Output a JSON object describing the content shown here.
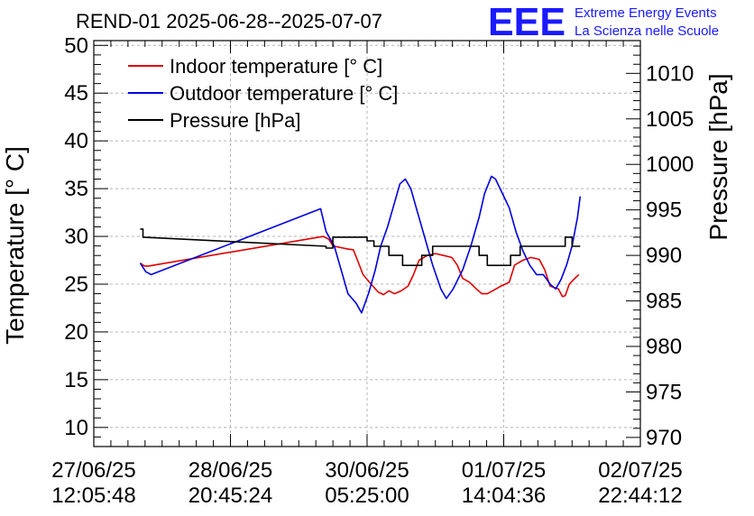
{
  "chart_data": {
    "type": "line",
    "title": "REND-01 2025-06-28--2025-07-07",
    "left_axis": {
      "label": "Temperature [° C]",
      "ylim": [
        8,
        50.5
      ],
      "ticks": [
        10,
        15,
        20,
        25,
        30,
        35,
        40,
        45,
        50
      ]
    },
    "right_axis": {
      "label": "Pressure [hPa]",
      "ylim": [
        969,
        1013.6
      ],
      "ticks": [
        970,
        975,
        980,
        985,
        990,
        995,
        1000,
        1005,
        1010
      ]
    },
    "x_axis": {
      "xlim": [
        0,
        4
      ],
      "ticks": [
        {
          "x": 0,
          "line1": "27/06/25",
          "line2": "12:05:48"
        },
        {
          "x": 1,
          "line1": "28/06/25",
          "line2": "20:45:24"
        },
        {
          "x": 2,
          "line1": "30/06/25",
          "line2": "05:25:00"
        },
        {
          "x": 3,
          "line1": "01/07/25",
          "line2": "14:04:36"
        },
        {
          "x": 4,
          "line1": "02/07/25",
          "line2": "22:44:12"
        }
      ]
    },
    "grid": true,
    "legend_position": "top-left",
    "series": [
      {
        "name": "Indoor temperature [° C]",
        "color": "#e00000",
        "axis": "left",
        "points": [
          [
            0.34,
            27.2
          ],
          [
            0.37,
            26.9
          ],
          [
            0.4,
            26.9
          ],
          [
            1.68,
            30.0
          ],
          [
            1.72,
            29.7
          ],
          [
            1.75,
            29.0
          ],
          [
            1.85,
            28.7
          ],
          [
            1.9,
            28.6
          ],
          [
            1.93,
            27.5
          ],
          [
            1.97,
            26.0
          ],
          [
            2.03,
            25.0
          ],
          [
            2.08,
            24.2
          ],
          [
            2.12,
            23.9
          ],
          [
            2.16,
            24.3
          ],
          [
            2.2,
            24.0
          ],
          [
            2.25,
            24.3
          ],
          [
            2.3,
            24.8
          ],
          [
            2.34,
            26.0
          ],
          [
            2.38,
            27.5
          ],
          [
            2.44,
            28.0
          ],
          [
            2.5,
            28.2
          ],
          [
            2.56,
            28.0
          ],
          [
            2.62,
            27.8
          ],
          [
            2.66,
            27.0
          ],
          [
            2.7,
            25.6
          ],
          [
            2.75,
            25.2
          ],
          [
            2.8,
            24.5
          ],
          [
            2.84,
            24.0
          ],
          [
            2.88,
            24.0
          ],
          [
            2.93,
            24.4
          ],
          [
            2.98,
            24.8
          ],
          [
            3.04,
            25.2
          ],
          [
            3.08,
            27.0
          ],
          [
            3.14,
            27.5
          ],
          [
            3.2,
            27.8
          ],
          [
            3.26,
            27.6
          ],
          [
            3.3,
            26.5
          ],
          [
            3.34,
            24.8
          ],
          [
            3.4,
            24.5
          ],
          [
            3.43,
            23.7
          ],
          [
            3.45,
            23.8
          ],
          [
            3.48,
            25.0
          ],
          [
            3.52,
            25.6
          ],
          [
            3.55,
            26.0
          ]
        ]
      },
      {
        "name": "Outdoor temperature [° C]",
        "color": "#0000e0",
        "axis": "left",
        "points": [
          [
            0.34,
            27.2
          ],
          [
            0.38,
            26.3
          ],
          [
            0.42,
            26.0
          ],
          [
            1.66,
            32.9
          ],
          [
            1.7,
            30.5
          ],
          [
            1.76,
            29.0
          ],
          [
            1.8,
            27.0
          ],
          [
            1.86,
            24.0
          ],
          [
            1.92,
            23.0
          ],
          [
            1.96,
            22.0
          ],
          [
            2.01,
            24.0
          ],
          [
            2.06,
            26.5
          ],
          [
            2.1,
            29.0
          ],
          [
            2.15,
            31.0
          ],
          [
            2.19,
            33.0
          ],
          [
            2.24,
            35.5
          ],
          [
            2.28,
            36.0
          ],
          [
            2.32,
            35.0
          ],
          [
            2.36,
            33.0
          ],
          [
            2.42,
            30.0
          ],
          [
            2.48,
            27.0
          ],
          [
            2.54,
            24.5
          ],
          [
            2.58,
            23.5
          ],
          [
            2.63,
            24.5
          ],
          [
            2.7,
            26.5
          ],
          [
            2.76,
            29.0
          ],
          [
            2.82,
            32.0
          ],
          [
            2.86,
            34.5
          ],
          [
            2.91,
            36.3
          ],
          [
            2.94,
            36.0
          ],
          [
            2.99,
            34.5
          ],
          [
            3.04,
            33.0
          ],
          [
            3.09,
            30.5
          ],
          [
            3.14,
            28.5
          ],
          [
            3.19,
            27.0
          ],
          [
            3.24,
            26.0
          ],
          [
            3.29,
            26.0
          ],
          [
            3.34,
            25.0
          ],
          [
            3.38,
            24.5
          ],
          [
            3.42,
            25.5
          ],
          [
            3.46,
            27.0
          ],
          [
            3.5,
            29.0
          ],
          [
            3.54,
            32.0
          ],
          [
            3.56,
            34.2
          ]
        ]
      },
      {
        "name": "Pressure [hPa]",
        "color": "#000000",
        "axis": "right",
        "points": [
          [
            0.34,
            992.9
          ],
          [
            0.36,
            992.9
          ],
          [
            0.36,
            992.0
          ],
          [
            1.7,
            991.0
          ],
          [
            1.7,
            990.8
          ],
          [
            1.75,
            990.8
          ],
          [
            1.75,
            992.0
          ],
          [
            2.0,
            992.0
          ],
          [
            2.0,
            991.6
          ],
          [
            2.05,
            991.6
          ],
          [
            2.05,
            991.0
          ],
          [
            2.16,
            991.0
          ],
          [
            2.16,
            990.0
          ],
          [
            2.26,
            990.0
          ],
          [
            2.26,
            988.9
          ],
          [
            2.4,
            988.9
          ],
          [
            2.4,
            990.0
          ],
          [
            2.48,
            990.0
          ],
          [
            2.48,
            991.0
          ],
          [
            2.82,
            991.0
          ],
          [
            2.82,
            990.0
          ],
          [
            2.88,
            990.0
          ],
          [
            2.88,
            988.9
          ],
          [
            3.05,
            988.9
          ],
          [
            3.05,
            990.0
          ],
          [
            3.12,
            990.0
          ],
          [
            3.12,
            991.0
          ],
          [
            3.45,
            991.0
          ],
          [
            3.45,
            992.0
          ],
          [
            3.5,
            992.0
          ],
          [
            3.5,
            991.0
          ],
          [
            3.56,
            991.0
          ]
        ]
      }
    ]
  },
  "logo": {
    "mark": "EEE",
    "line1": "Extreme Energy Events",
    "line2": "La Scienza nelle Scuole"
  }
}
